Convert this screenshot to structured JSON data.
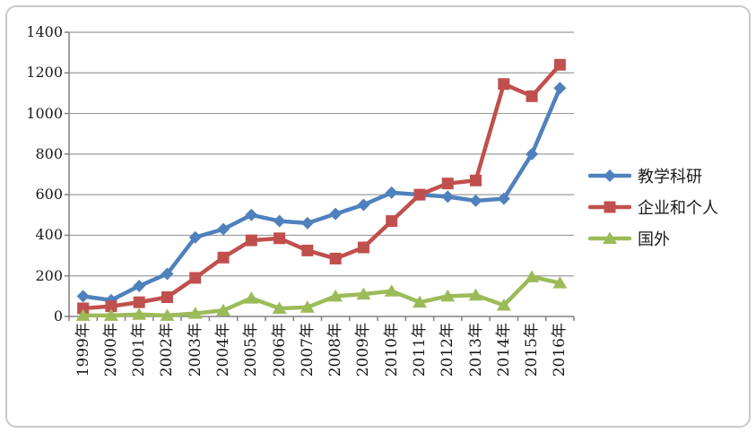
{
  "chart_data": {
    "type": "line",
    "title": "",
    "xlabel": "",
    "ylabel": "",
    "categories": [
      "1999年",
      "2000年",
      "2001年",
      "2002年",
      "2003年",
      "2004年",
      "2005年",
      "2006年",
      "2007年",
      "2008年",
      "2009年",
      "2010年",
      "2011年",
      "2012年",
      "2013年",
      "2014年",
      "2015年",
      "2016年"
    ],
    "series": [
      {
        "name": "教学科研",
        "marker": "diamond",
        "color": "#4F81BD",
        "values": [
          100,
          80,
          150,
          210,
          390,
          430,
          500,
          470,
          460,
          505,
          550,
          610,
          600,
          590,
          570,
          580,
          800,
          1125
        ]
      },
      {
        "name": "企业和个人",
        "marker": "square",
        "color": "#C0504D",
        "values": [
          40,
          50,
          70,
          95,
          190,
          290,
          375,
          385,
          325,
          285,
          340,
          470,
          600,
          655,
          670,
          1145,
          1085,
          1240
        ]
      },
      {
        "name": "国外",
        "marker": "triangle",
        "color": "#9BBB59",
        "values": [
          5,
          5,
          10,
          5,
          15,
          30,
          90,
          40,
          45,
          100,
          110,
          125,
          70,
          100,
          105,
          55,
          195,
          165
        ]
      }
    ],
    "ylim": [
      0,
      1400
    ],
    "ytick_step": 200,
    "yticks": [
      0,
      200,
      400,
      600,
      800,
      1000,
      1200,
      1400
    ],
    "grid": true,
    "legend_position": "right",
    "colors": {
      "axis": "#808080",
      "grid": "#9c9c9c",
      "border": "#c9c9c9",
      "text": "#1a1a1a",
      "background": "#ffffff"
    }
  }
}
